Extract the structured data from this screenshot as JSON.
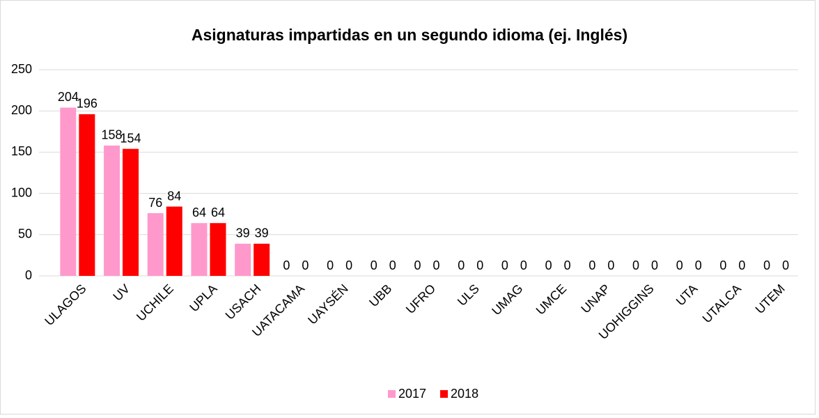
{
  "chart_data": {
    "type": "bar",
    "title": "Asignaturas impartidas en un segundo idioma (ej. Inglés)",
    "categories": [
      "ULAGOS",
      "UV",
      "UCHILE",
      "UPLA",
      "USACH",
      "UATACAMA",
      "UAYSÉN",
      "UBB",
      "UFRO",
      "ULS",
      "UMAG",
      "UMCE",
      "UNAP",
      "UOHIGGINS",
      "UTA",
      "UTALCA",
      "UTEM"
    ],
    "series": [
      {
        "name": "2017",
        "color": "#ff99cc",
        "values": [
          204,
          158,
          76,
          64,
          39,
          0,
          0,
          0,
          0,
          0,
          0,
          0,
          0,
          0,
          0,
          0,
          0
        ]
      },
      {
        "name": "2018",
        "color": "#ff0000",
        "values": [
          196,
          154,
          84,
          64,
          39,
          0,
          0,
          0,
          0,
          0,
          0,
          0,
          0,
          0,
          0,
          0,
          0
        ]
      }
    ],
    "ylim": [
      0,
      250
    ],
    "yticks": [
      0,
      50,
      100,
      150,
      200,
      250
    ],
    "grid": true,
    "legend": "bottom"
  }
}
